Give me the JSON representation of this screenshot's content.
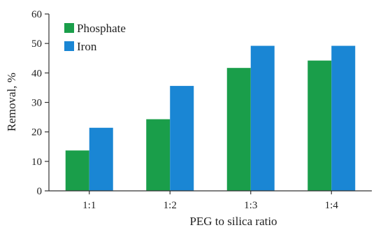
{
  "chart_data": {
    "type": "bar",
    "categories": [
      "1:1",
      "1:2",
      "1:3",
      "1:4"
    ],
    "series": [
      {
        "name": "Phosphate",
        "color": "#1a9e4a",
        "values": [
          13.7,
          24.3,
          41.7,
          44.2
        ]
      },
      {
        "name": "Iron",
        "color": "#1a86d4",
        "values": [
          21.4,
          35.6,
          49.2,
          49.2
        ]
      }
    ],
    "xlabel": "PEG to silica ratio",
    "ylabel": "Removal, %",
    "ylim": [
      0,
      60
    ],
    "yticks": [
      0,
      10,
      20,
      30,
      40,
      50,
      60
    ],
    "grid": false,
    "legend_position": "top-left"
  }
}
